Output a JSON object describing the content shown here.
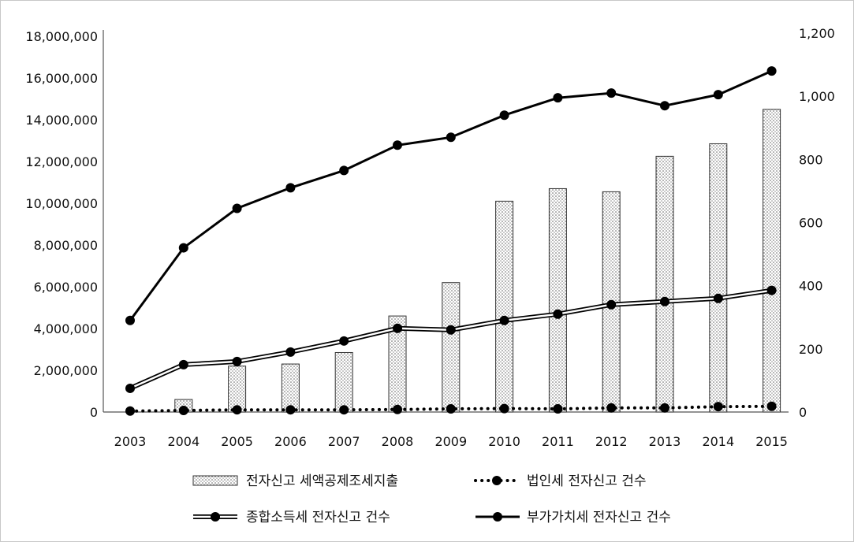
{
  "chart_data": {
    "type": "bar",
    "years": [
      "2003",
      "2004",
      "2005",
      "2006",
      "2007",
      "2008",
      "2009",
      "2010",
      "2011",
      "2012",
      "2013",
      "2014",
      "2015"
    ],
    "left_axis": {
      "min": 0,
      "max": 18000000,
      "ticks": [
        0,
        2000000,
        4000000,
        6000000,
        8000000,
        10000000,
        12000000,
        14000000,
        16000000,
        18000000
      ],
      "tick_labels": [
        "0",
        "2,000,000",
        "4,000,000",
        "6,000,000",
        "8,000,000",
        "10,000,000",
        "12,000,000",
        "14,000,000",
        "16,000,000",
        "18,000,000"
      ]
    },
    "right_axis": {
      "min": 0,
      "max": 1200,
      "ticks": [
        0,
        200,
        400,
        600,
        800,
        1000,
        1200
      ],
      "tick_labels": [
        "0",
        "200",
        "400",
        "600",
        "800",
        "1,000",
        "1,200"
      ]
    },
    "series": [
      {
        "name": "전자신고 세액공제조세지출",
        "kind": "bar",
        "axis": "left",
        "pattern": "dots",
        "values": [
          null,
          600000,
          2200000,
          2300000,
          2850000,
          4600000,
          6200000,
          10100000,
          10700000,
          10550000,
          12250000,
          12850000,
          14500000
        ]
      },
      {
        "name": "법인세 전자신고 건수",
        "kind": "line",
        "axis": "right",
        "style": "dotted",
        "values": [
          3,
          5,
          7,
          7,
          7,
          8,
          10,
          11,
          10,
          13,
          13,
          17,
          18
        ]
      },
      {
        "name": "종합소득세 전자신고 건수",
        "kind": "line",
        "axis": "right",
        "style": "double",
        "values": [
          75,
          150,
          160,
          190,
          225,
          265,
          260,
          290,
          310,
          340,
          350,
          360,
          385
        ]
      },
      {
        "name": "부가가치세 전자신고 건수",
        "kind": "line",
        "axis": "right",
        "style": "solid",
        "values": [
          290,
          520,
          645,
          710,
          765,
          845,
          870,
          940,
          995,
          1010,
          970,
          1005,
          1080
        ]
      }
    ],
    "legend": {
      "placement": "bottom",
      "rows": [
        [
          "전자신고 세액공제조세지출",
          "법인세 전자신고 건수"
        ],
        [
          "종합소득세 전자신고 건수",
          "부가가치세 전자신고 건수"
        ]
      ]
    },
    "grid": false
  }
}
